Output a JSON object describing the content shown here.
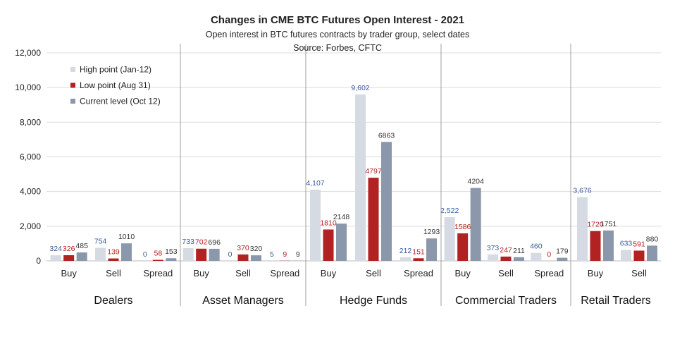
{
  "chart_data": {
    "type": "bar",
    "title": "Changes in CME BTC Futures Open Interest - 2021",
    "subtitle": "Open interest in BTC futures contracts by trader group, select dates",
    "source": "Source: Forbes, CFTC",
    "ylim": [
      0,
      12000
    ],
    "yticks": [
      "0",
      "2,000",
      "4,000",
      "6,000",
      "8,000",
      "10,000",
      "12,000"
    ],
    "ytick_values": [
      0,
      2000,
      4000,
      6000,
      8000,
      10000,
      12000
    ],
    "grid": true,
    "legend_position": "top-left",
    "colors": {
      "high": "#d6dae3",
      "low": "#b22222",
      "current": "#8b97ab",
      "high_label": "#3a5a9a",
      "low_label": "#b22222",
      "current_label": "#333333"
    },
    "series": [
      {
        "name": "High point (Jan-12)",
        "key": "high"
      },
      {
        "name": "Low point (Aug 31)",
        "key": "low"
      },
      {
        "name": "Current level (Oct 12)",
        "key": "current"
      }
    ],
    "groups": [
      {
        "name": "Dealers",
        "categories": [
          {
            "name": "Buy",
            "values": [
              324,
              326,
              485
            ],
            "labels": [
              "324",
              "326",
              "485"
            ]
          },
          {
            "name": "Sell",
            "values": [
              754,
              139,
              1010
            ],
            "labels": [
              "754",
              "139",
              "1010"
            ]
          },
          {
            "name": "Spread",
            "values": [
              0,
              58,
              153
            ],
            "labels": [
              "0",
              "58",
              "153"
            ]
          }
        ]
      },
      {
        "name": "Asset Managers",
        "categories": [
          {
            "name": "Buy",
            "values": [
              733,
              702,
              696
            ],
            "labels": [
              "733",
              "702",
              "696"
            ]
          },
          {
            "name": "Sell",
            "values": [
              0,
              370,
              320
            ],
            "labels": [
              "0",
              "370",
              "320"
            ]
          },
          {
            "name": "Spread",
            "values": [
              5,
              9,
              9
            ],
            "labels": [
              "5",
              "9",
              "9"
            ]
          }
        ]
      },
      {
        "name": "Hedge Funds",
        "categories": [
          {
            "name": "Buy",
            "values": [
              4107,
              1810,
              2148
            ],
            "labels": [
              "4,107",
              "1810",
              "2148"
            ]
          },
          {
            "name": "Sell",
            "values": [
              9602,
              4797,
              6863
            ],
            "labels": [
              "9,602",
              "4797",
              "6863"
            ]
          },
          {
            "name": "Spread",
            "values": [
              212,
              151,
              1293
            ],
            "labels": [
              "212",
              "151",
              "1293"
            ]
          }
        ]
      },
      {
        "name": "Commercial Traders",
        "categories": [
          {
            "name": "Buy",
            "values": [
              2522,
              1586,
              4204
            ],
            "labels": [
              "2,522",
              "1586",
              "4204"
            ]
          },
          {
            "name": "Sell",
            "values": [
              373,
              247,
              211
            ],
            "labels": [
              "373",
              "247",
              "211"
            ]
          },
          {
            "name": "Spread",
            "values": [
              460,
              0,
              179
            ],
            "labels": [
              "460",
              "0",
              "179"
            ]
          }
        ]
      },
      {
        "name": "Retail Traders",
        "categories": [
          {
            "name": "Buy",
            "values": [
              3676,
              1720,
              1751
            ],
            "labels": [
              "3,676",
              "1720",
              "1751"
            ]
          },
          {
            "name": "Sell",
            "values": [
              633,
              591,
              880
            ],
            "labels": [
              "633",
              "591",
              "880"
            ]
          }
        ]
      }
    ]
  }
}
